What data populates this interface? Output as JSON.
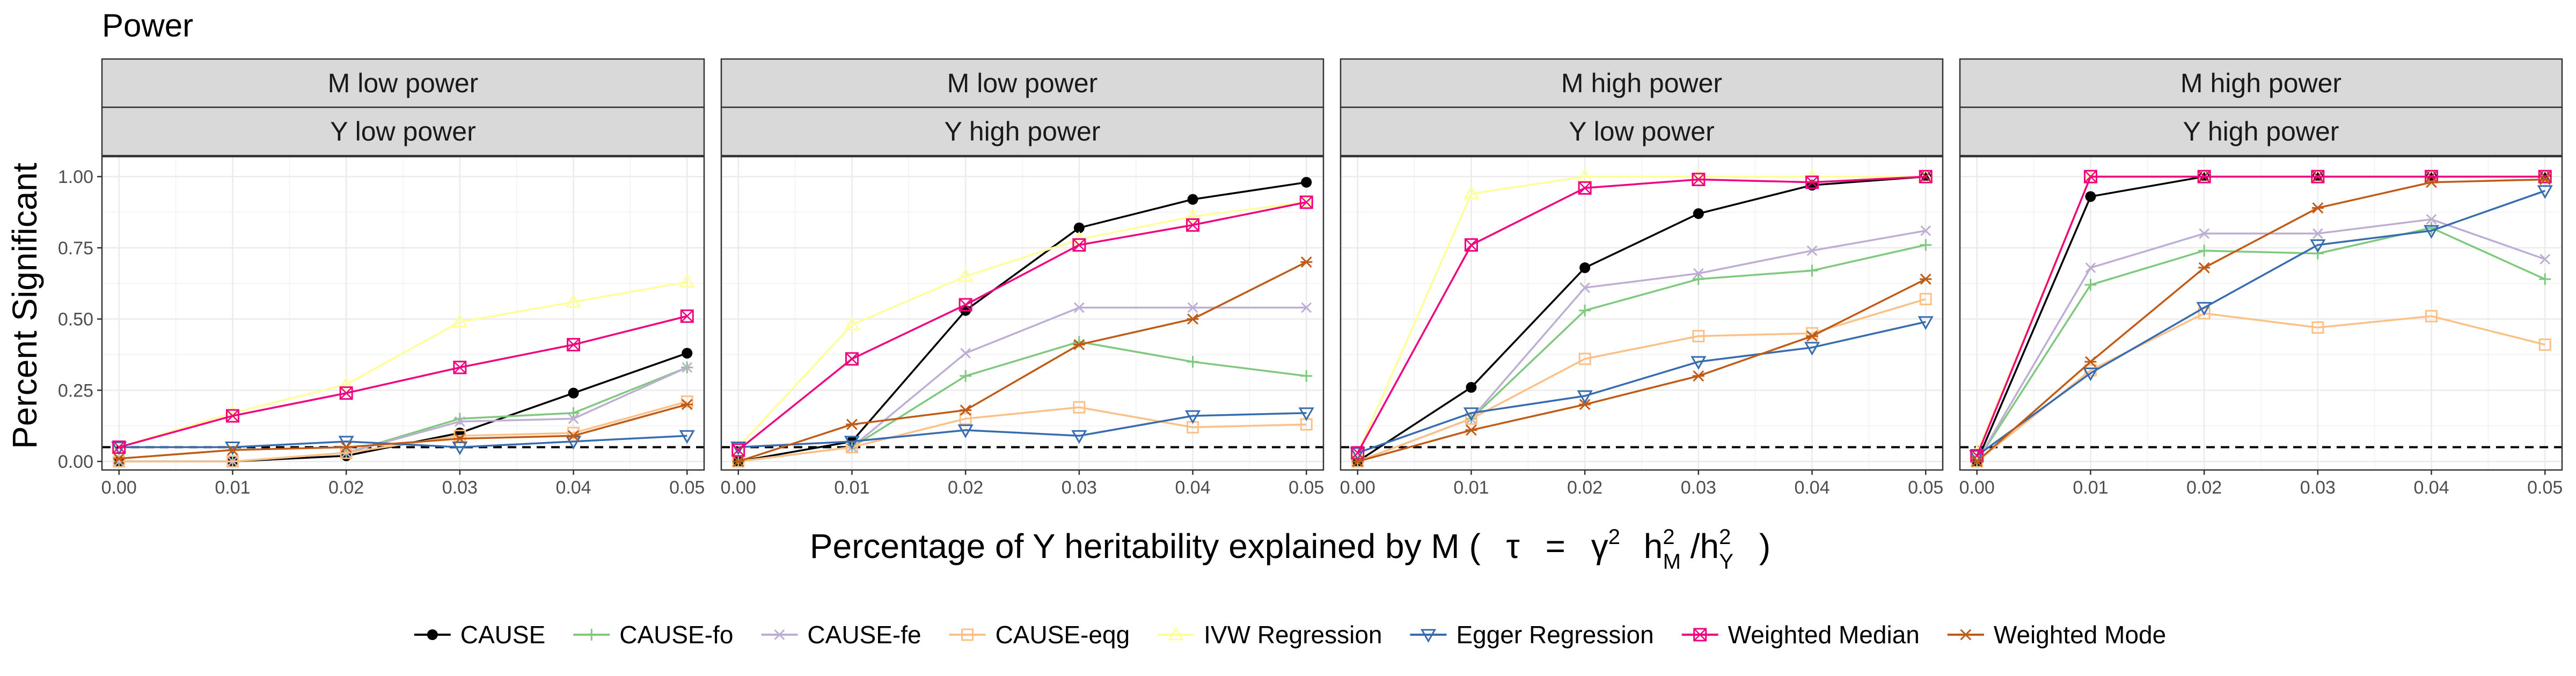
{
  "chart_data": {
    "type": "line",
    "title": "Power",
    "xlabel": "Percentage of Y heritability explained by M ( τ = γ² h²_M/h²_Y )",
    "xlabel_parts": {
      "pre": "Percentage of Y heritability explained by M (",
      "tau": "τ",
      "eq": "=",
      "gamma": "γ",
      "h": "h",
      "sq": "2",
      "subM": "M",
      "slash": "/h",
      "subY": "Y",
      "close": ")"
    },
    "ylabel": "Percent Significant",
    "x": [
      0.0,
      0.01,
      0.02,
      0.03,
      0.04,
      0.05
    ],
    "x_ticks": [
      "0.00",
      "0.01",
      "0.02",
      "0.03",
      "0.04",
      "0.05"
    ],
    "y_ticks": [
      "0.00",
      "0.25",
      "0.50",
      "0.75",
      "1.00"
    ],
    "y_tick_values": [
      0,
      0.25,
      0.5,
      0.75,
      1.0
    ],
    "xlim": [
      -0.0015,
      0.0515
    ],
    "ylim": [
      -0.03,
      1.07
    ],
    "reference_line": 0.05,
    "grid": true,
    "legend_position": "bottom",
    "series_styles": [
      {
        "name": "CAUSE",
        "color": "#000000",
        "marker": "dot"
      },
      {
        "name": "CAUSE-fo",
        "color": "#7FC97F",
        "marker": "plus"
      },
      {
        "name": "CAUSE-fe",
        "color": "#BEAED4",
        "marker": "cross"
      },
      {
        "name": "CAUSE-eqg",
        "color": "#FDC086",
        "marker": "square"
      },
      {
        "name": "IVW Regression",
        "color": "#FFFF99",
        "marker": "triangle-up"
      },
      {
        "name": "Egger Regression",
        "color": "#386CB0",
        "marker": "triangle-down"
      },
      {
        "name": "Weighted Median",
        "color": "#F0027F",
        "marker": "square-x"
      },
      {
        "name": "Weighted Mode",
        "color": "#BF5B17",
        "marker": "asterisk"
      }
    ],
    "panels": [
      {
        "strip_top": "M low power",
        "strip_bottom": "Y low power",
        "series": [
          {
            "name": "CAUSE",
            "values": [
              0.0,
              0.0,
              0.02,
              0.1,
              0.24,
              0.38
            ]
          },
          {
            "name": "CAUSE-fo",
            "values": [
              0.0,
              0.0,
              0.03,
              0.15,
              0.17,
              0.33
            ]
          },
          {
            "name": "CAUSE-fe",
            "values": [
              0.0,
              0.0,
              0.03,
              0.14,
              0.15,
              0.33
            ]
          },
          {
            "name": "CAUSE-eqg",
            "values": [
              0.0,
              0.0,
              0.03,
              0.09,
              0.1,
              0.21
            ]
          },
          {
            "name": "IVW Regression",
            "values": [
              0.05,
              0.17,
              0.27,
              0.49,
              0.56,
              0.63
            ]
          },
          {
            "name": "Egger Regression",
            "values": [
              0.05,
              0.05,
              0.07,
              0.05,
              0.07,
              0.09
            ]
          },
          {
            "name": "Weighted Median",
            "values": [
              0.05,
              0.16,
              0.24,
              0.33,
              0.41,
              0.51
            ]
          },
          {
            "name": "Weighted Mode",
            "values": [
              0.01,
              0.04,
              0.05,
              0.08,
              0.09,
              0.2
            ]
          }
        ]
      },
      {
        "strip_top": "M low power",
        "strip_bottom": "Y high power",
        "series": [
          {
            "name": "CAUSE",
            "values": [
              0.0,
              0.07,
              0.53,
              0.82,
              0.92,
              0.98
            ]
          },
          {
            "name": "CAUSE-fo",
            "values": [
              0.0,
              0.05,
              0.3,
              0.42,
              0.35,
              0.3
            ]
          },
          {
            "name": "CAUSE-fe",
            "values": [
              0.0,
              0.05,
              0.38,
              0.54,
              0.54,
              0.54
            ]
          },
          {
            "name": "CAUSE-eqg",
            "values": [
              0.0,
              0.05,
              0.15,
              0.19,
              0.12,
              0.13
            ]
          },
          {
            "name": "IVW Regression",
            "values": [
              0.05,
              0.48,
              0.65,
              0.78,
              0.86,
              0.91
            ]
          },
          {
            "name": "Egger Regression",
            "values": [
              0.05,
              0.07,
              0.11,
              0.09,
              0.16,
              0.17
            ]
          },
          {
            "name": "Weighted Median",
            "values": [
              0.04,
              0.36,
              0.55,
              0.76,
              0.83,
              0.91
            ]
          },
          {
            "name": "Weighted Mode",
            "values": [
              0.0,
              0.13,
              0.18,
              0.41,
              0.5,
              0.7
            ]
          }
        ]
      },
      {
        "strip_top": "M high power",
        "strip_bottom": "Y low power",
        "series": [
          {
            "name": "CAUSE",
            "values": [
              0.0,
              0.26,
              0.68,
              0.87,
              0.97,
              1.0
            ]
          },
          {
            "name": "CAUSE-fo",
            "values": [
              0.0,
              0.15,
              0.53,
              0.64,
              0.67,
              0.76
            ]
          },
          {
            "name": "CAUSE-fe",
            "values": [
              0.0,
              0.15,
              0.61,
              0.66,
              0.74,
              0.81
            ]
          },
          {
            "name": "CAUSE-eqg",
            "values": [
              0.0,
              0.15,
              0.36,
              0.44,
              0.45,
              0.57
            ]
          },
          {
            "name": "IVW Regression",
            "values": [
              0.03,
              0.94,
              1.0,
              1.0,
              1.0,
              1.0
            ]
          },
          {
            "name": "Egger Regression",
            "values": [
              0.03,
              0.17,
              0.23,
              0.35,
              0.4,
              0.49
            ]
          },
          {
            "name": "Weighted Median",
            "values": [
              0.03,
              0.76,
              0.96,
              0.99,
              0.98,
              1.0
            ]
          },
          {
            "name": "Weighted Mode",
            "values": [
              0.0,
              0.11,
              0.2,
              0.3,
              0.44,
              0.64
            ]
          }
        ]
      },
      {
        "strip_top": "M high power",
        "strip_bottom": "Y high power",
        "series": [
          {
            "name": "CAUSE",
            "values": [
              0.0,
              0.93,
              1.0,
              1.0,
              1.0,
              1.0
            ]
          },
          {
            "name": "CAUSE-fo",
            "values": [
              0.0,
              0.62,
              0.74,
              0.73,
              0.82,
              0.64
            ]
          },
          {
            "name": "CAUSE-fe",
            "values": [
              0.0,
              0.68,
              0.8,
              0.8,
              0.85,
              0.71
            ]
          },
          {
            "name": "CAUSE-eqg",
            "values": [
              0.0,
              0.32,
              0.52,
              0.47,
              0.51,
              0.41
            ]
          },
          {
            "name": "IVW Regression",
            "values": [
              0.03,
              1.0,
              1.0,
              1.0,
              1.0,
              1.0
            ]
          },
          {
            "name": "Egger Regression",
            "values": [
              0.02,
              0.31,
              0.54,
              0.76,
              0.81,
              0.95
            ]
          },
          {
            "name": "Weighted Median",
            "values": [
              0.02,
              1.0,
              1.0,
              1.0,
              1.0,
              1.0
            ]
          },
          {
            "name": "Weighted Mode",
            "values": [
              0.0,
              0.35,
              0.68,
              0.89,
              0.98,
              0.99
            ]
          }
        ]
      }
    ]
  }
}
